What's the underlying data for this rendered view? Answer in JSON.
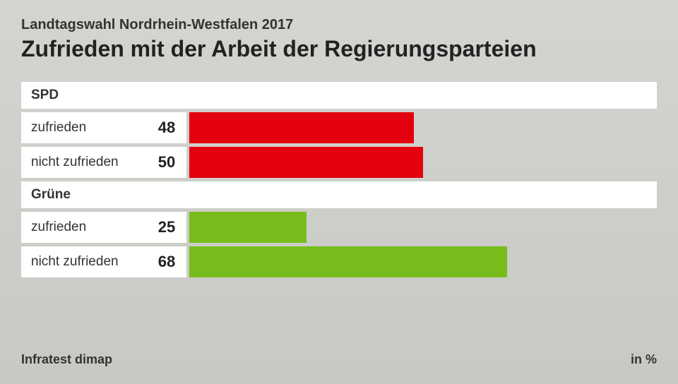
{
  "header": {
    "subtitle": "Landtagswahl Nordrhein-Westfalen 2017",
    "title": "Zufrieden mit der Arbeit der Regierungsparteien"
  },
  "chart": {
    "type": "bar",
    "max_value": 100,
    "background_color": "#ffffff",
    "groups": [
      {
        "name": "SPD",
        "color": "#e3000f",
        "rows": [
          {
            "label": "zufrieden",
            "value": 48
          },
          {
            "label": "nicht zufrieden",
            "value": 50
          }
        ]
      },
      {
        "name": "Grüne",
        "color": "#78bc1b",
        "rows": [
          {
            "label": "zufrieden",
            "value": 25
          },
          {
            "label": "nicht zufrieden",
            "value": 68
          }
        ]
      }
    ]
  },
  "footer": {
    "source": "Infratest dimap",
    "unit": "in %"
  }
}
